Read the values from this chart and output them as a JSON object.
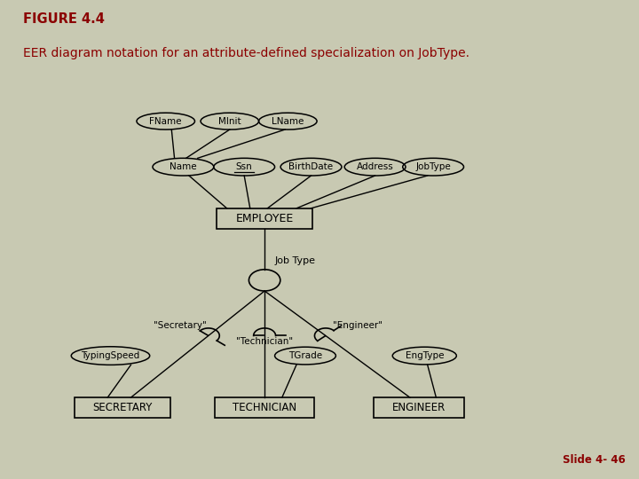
{
  "bg_color": "#c8c9b2",
  "diagram_bg": "#ffffff",
  "title_line1": "FIGURE 4.4",
  "title_line2": "EER diagram notation for an attribute-defined specialization on JobType.",
  "title_color": "#8b0000",
  "slide_text": "Slide 4- 46",
  "slide_color": "#8b0000",
  "border_color1": "#8b1a1a",
  "border_color2": "#4a0000"
}
